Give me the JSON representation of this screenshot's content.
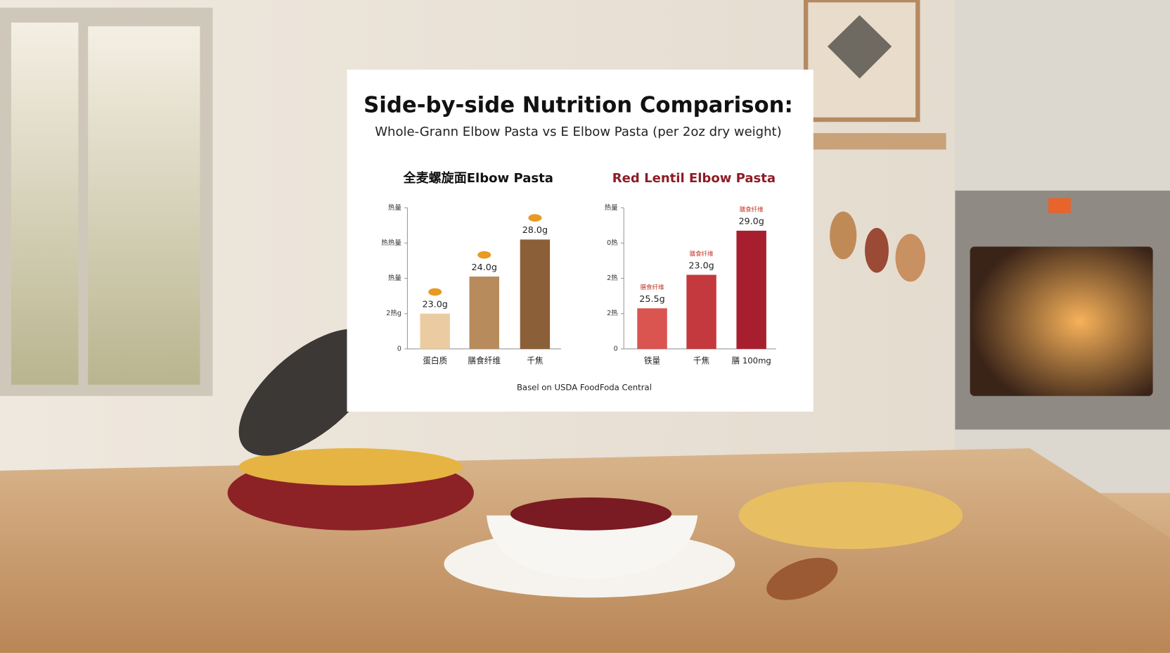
{
  "title": "Side-by-side Nutrition Comparison:",
  "subtitle": "Whole-Grann Elbow Pasta vs E Elbow Pasta (per 2oz dry weight)",
  "source": "Basel on USDA FoodFoda Central",
  "chart_data": [
    {
      "type": "bar",
      "title": "全麦螺旋面Elbow Pasta",
      "categories": [
        "蛋白质",
        "膳食纤维",
        "千焦"
      ],
      "values": [
        1,
        2.05,
        3.1
      ],
      "colors": [
        "#ebcba2",
        "#b88b5c",
        "#8b6038"
      ],
      "ylim": [
        0,
        4
      ],
      "yticks": [
        0,
        {
          "value": 1,
          "label": "2热g"
        },
        {
          "value": 2,
          "label": "热量"
        },
        {
          "value": 3,
          "label": "热热量"
        },
        {
          "value": 4,
          "label": "热量"
        }
      ],
      "annotations": [
        "23.0g",
        "24.0g",
        "28.0g"
      ]
    },
    {
      "type": "bar",
      "title": "Red Lentil Elbow Pasta",
      "categories": [
        "铁量",
        "千焦",
        "膳 100mg"
      ],
      "values": [
        1.15,
        2.1,
        3.35
      ],
      "colors": [
        "#da5450",
        "#c4393d",
        "#a71f2e"
      ],
      "ylim": [
        0,
        4
      ],
      "yticks": [
        0,
        {
          "value": 1,
          "label": "2热"
        },
        {
          "value": 2,
          "label": "2热"
        },
        {
          "value": 3,
          "label": "0热"
        },
        {
          "value": 4,
          "label": "热量"
        }
      ],
      "annotations": [
        "25.5g",
        "23.0g",
        "29.0g"
      ],
      "tags": [
        "膳食纤维",
        "膳食纤维",
        "膳食纤维"
      ]
    }
  ]
}
